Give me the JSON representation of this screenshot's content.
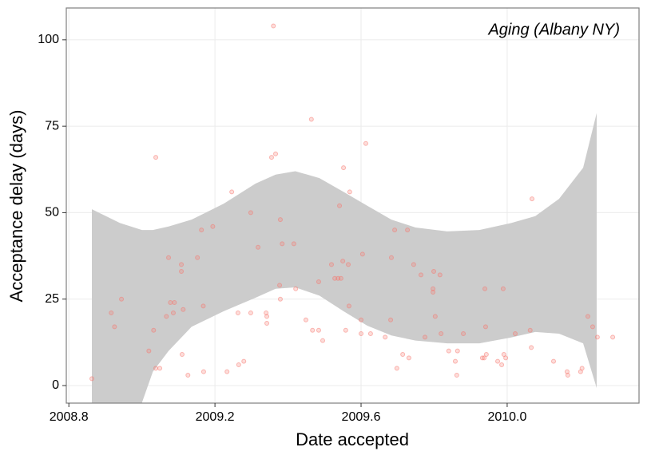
{
  "chart_data": {
    "type": "scatter",
    "annotation": "Aging (Albany NY)",
    "x_label": "Date accepted",
    "y_label": "Acceptance delay (days)",
    "xlim": [
      2008.793,
      2010.361
    ],
    "ylim": [
      -5.08,
      109.2
    ],
    "xticks": [
      2008.8,
      2009.2,
      2009.6,
      {
        "value": 2010,
        "label": "2010.0"
      }
    ],
    "yticks": [
      0,
      25,
      50,
      75,
      100
    ],
    "grid": true,
    "series": [
      {
        "color": "#f8766d",
        "x": [
          2008.863,
          2008.916,
          2008.925,
          2008.944,
          2009.019,
          2009.032,
          2009.038,
          2009.038,
          2009.049,
          2009.067,
          2009.073,
          2009.078,
          2009.086,
          2009.089,
          2009.108,
          2009.108,
          2009.11,
          2009.113,
          2009.126,
          2009.152,
          2009.163,
          2009.168,
          2009.169,
          2009.194,
          2009.233,
          2009.246,
          2009.263,
          2009.265,
          2009.279,
          2009.298,
          2009.298,
          2009.318,
          2009.34,
          2009.342,
          2009.342,
          2009.355,
          2009.36,
          2009.366,
          2009.377,
          2009.379,
          2009.379,
          2009.384,
          2009.416,
          2009.421,
          2009.449,
          2009.464,
          2009.467,
          2009.484,
          2009.484,
          2009.495,
          2009.519,
          2009.528,
          2009.537,
          2009.541,
          2009.545,
          2009.55,
          2009.552,
          2009.558,
          2009.565,
          2009.567,
          2009.569,
          2009.6,
          2009.6,
          2009.604,
          2009.613,
          2009.626,
          2009.666,
          2009.681,
          2009.683,
          2009.692,
          2009.698,
          2009.714,
          2009.727,
          2009.731,
          2009.744,
          2009.764,
          2009.775,
          2009.797,
          2009.799,
          2009.797,
          2009.803,
          2009.816,
          2009.819,
          2009.84,
          2009.858,
          2009.862,
          2009.864,
          2009.88,
          2009.932,
          2009.937,
          2009.939,
          2009.941,
          2009.943,
          2009.974,
          2009.985,
          2009.989,
          2009.991,
          2009.996,
          2010.022,
          2010.063,
          2010.066,
          2010.068,
          2010.127,
          2010.164,
          2010.166,
          2010.201,
          2010.205,
          2010.221,
          2010.234,
          2010.247,
          2010.289
        ],
        "values": [
          2,
          21,
          17,
          25,
          10,
          16,
          66,
          5,
          5,
          20,
          37,
          24,
          21,
          24,
          35,
          33,
          9,
          22,
          3,
          37,
          45,
          23,
          4,
          46,
          4,
          56,
          21,
          6,
          7,
          21,
          50,
          40,
          21,
          20,
          18,
          66,
          104,
          67,
          29,
          25,
          48,
          41,
          41,
          28,
          19,
          77,
          16,
          16,
          30,
          13,
          35,
          31,
          31,
          52,
          31,
          36,
          63,
          16,
          35,
          23,
          56,
          19,
          15,
          38,
          70,
          15,
          14,
          19,
          37,
          45,
          5,
          9,
          45,
          8,
          35,
          32,
          14,
          28,
          33,
          27,
          20,
          32,
          15,
          10,
          7,
          3,
          10,
          15,
          8,
          8,
          28,
          17,
          9,
          7,
          6,
          28,
          9,
          8,
          15,
          16,
          11,
          54,
          7,
          4,
          3,
          4,
          5,
          20,
          17,
          14,
          14
        ]
      }
    ],
    "band": {
      "color": "#cccccc",
      "x": [
        2008.863,
        2008.94,
        2009.0,
        2009.03,
        2009.073,
        2009.136,
        2009.224,
        2009.311,
        2009.366,
        2009.42,
        2009.486,
        2009.552,
        2009.617,
        2009.683,
        2009.749,
        2009.836,
        2009.924,
        2010.011,
        2010.077,
        2010.142,
        2010.208,
        2010.245
      ],
      "upper": [
        51,
        47,
        45,
        45,
        46,
        48,
        52.6,
        58.4,
        61,
        62,
        60,
        56,
        52,
        48,
        45.7,
        44.6,
        45,
        47,
        49,
        54,
        63,
        78.8
      ],
      "lower": [
        -25,
        -14,
        -5,
        4,
        10,
        17,
        21.5,
        25.4,
        28,
        28.4,
        26,
        21.5,
        17.3,
        14.5,
        13,
        12.2,
        12.2,
        13.9,
        15.5,
        15,
        12.2,
        -0.7
      ]
    }
  }
}
